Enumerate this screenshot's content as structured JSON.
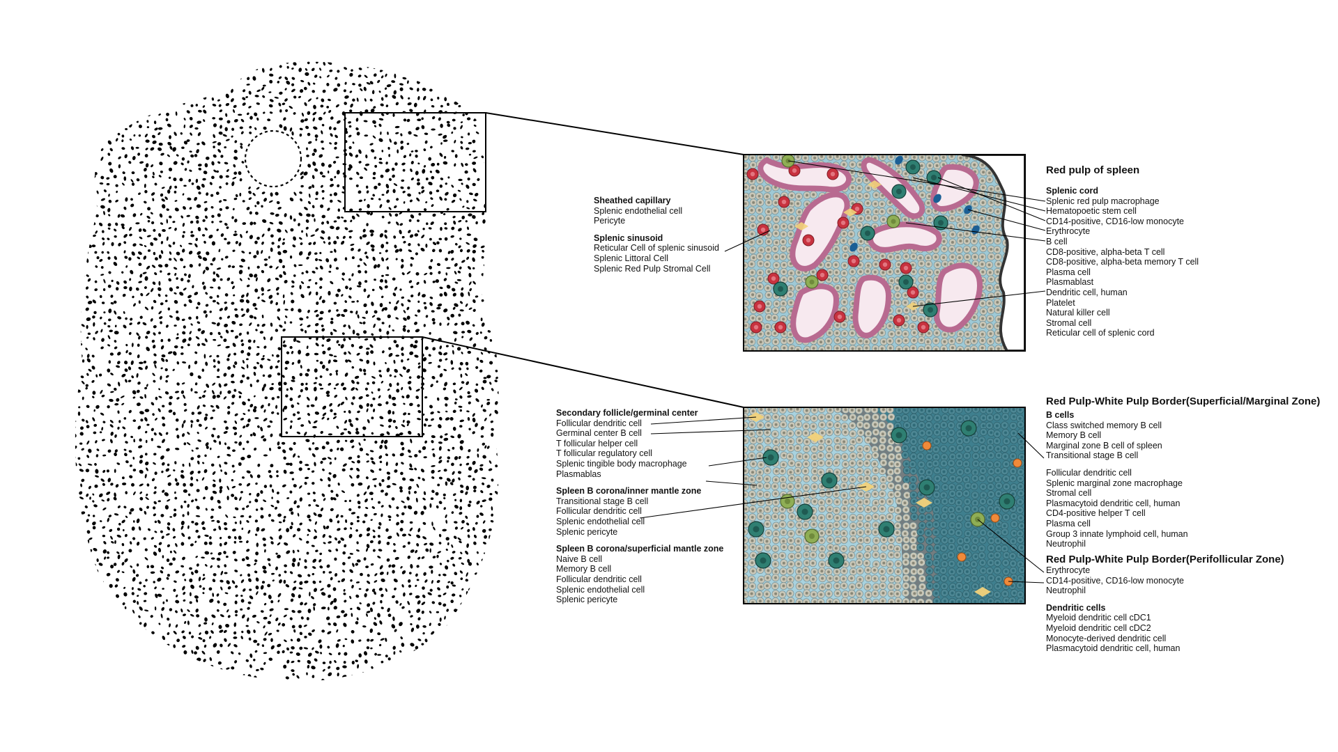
{
  "colors": {
    "red_pulp_bg": "#9ec9d6",
    "red_pulp_cell": "#c9c7b8",
    "erythrocyte": "#c8323f",
    "sinusoid_wall": "#b86a90",
    "sinusoid_lumen": "#f7e9ef",
    "macrophage": "#2f7f72",
    "stem_cell": "#8fae55",
    "b_cell_blue": "#1b5f95",
    "stromal": "#f2d27a",
    "white_pulp_dark": "#3f7f8e",
    "white_pulp_shadow": "#6b6f70",
    "neutrophil": "#f08a3a"
  },
  "red_pulp": {
    "title": "Red pulp of spleen",
    "left_groups": [
      {
        "heading": "Sheathed capillary",
        "items": [
          "Splenic endothelial cell",
          "Pericyte"
        ]
      },
      {
        "heading": "Splenic sinusoid",
        "items": [
          "Reticular Cell of splenic sinusoid",
          "Splenic Littoral Cell",
          "Splenic Red Pulp Stromal Cell"
        ]
      }
    ],
    "right_groups": [
      {
        "heading": "Splenic cord",
        "items": [
          "Splenic red pulp macrophage",
          "Hematopoetic stem cell",
          "CD14-positive, CD16-low monocyte",
          "Erythrocyte",
          "B cell",
          "CD8-positive, alpha-beta T cell",
          "CD8-positive, alpha-beta memory T cell",
          "Plasma cell",
          "Plasmablast",
          "Dendritic cell, human",
          "Platelet",
          "Natural killer cell",
          "Stromal cell",
          "Reticular cell of splenic cord"
        ]
      }
    ]
  },
  "white_pulp": {
    "left_groups": [
      {
        "heading": "Secondary follicle/germinal center",
        "items": [
          "Follicular dendritic cell",
          "Germinal center B cell",
          "T follicular helper cell",
          "T follicular regulatory cell",
          "Splenic tingible body macrophage",
          "Plasmablas"
        ]
      },
      {
        "heading": "Spleen B corona/inner mantle zone",
        "items": [
          "Transitional stage B cell",
          "Follicular dendritic cell",
          "Splenic endothelial cell",
          "Splenic pericyte"
        ]
      },
      {
        "heading": "Spleen B corona/superficial mantle zone",
        "items": [
          "Naive B cell",
          "Memory B cell",
          "Follicular dendritic cell",
          "Splenic endothelial cell",
          "Splenic pericyte"
        ]
      }
    ],
    "marginal_title": "Red Pulp-White Pulp Border(Superficial/Marginal Zone)",
    "marginal_groups": [
      {
        "heading": "B cells",
        "items": [
          "Class switched memory B cell",
          "Memory B cell",
          "Marginal zone B cell of spleen",
          "Transitional stage B cell"
        ]
      },
      {
        "heading": "",
        "items": [
          "Follicular dendritic cell",
          "Splenic marginal zone macrophage",
          "Stromal cell",
          "Plasmacytoid dendritic cell, human",
          "CD4-positive helper T cell",
          "Plasma cell",
          "Group 3 innate lymphoid cell, human",
          "Neutrophil"
        ]
      }
    ],
    "perifollicular_title": "Red Pulp-White Pulp Border(Perifollicular Zone)",
    "perifollicular_groups": [
      {
        "heading": "",
        "items": [
          "Erythrocyte",
          "CD14-positive, CD16-low monocyte",
          "Neutrophil"
        ]
      },
      {
        "heading": "Dendritic cells",
        "items": [
          "Myeloid dendritic cell cDC1",
          "Myeloid dendritic cell cDC2",
          "Monocyte-derived dendritic cell",
          "Plasmacytoid dendritic cell, human"
        ]
      }
    ]
  }
}
